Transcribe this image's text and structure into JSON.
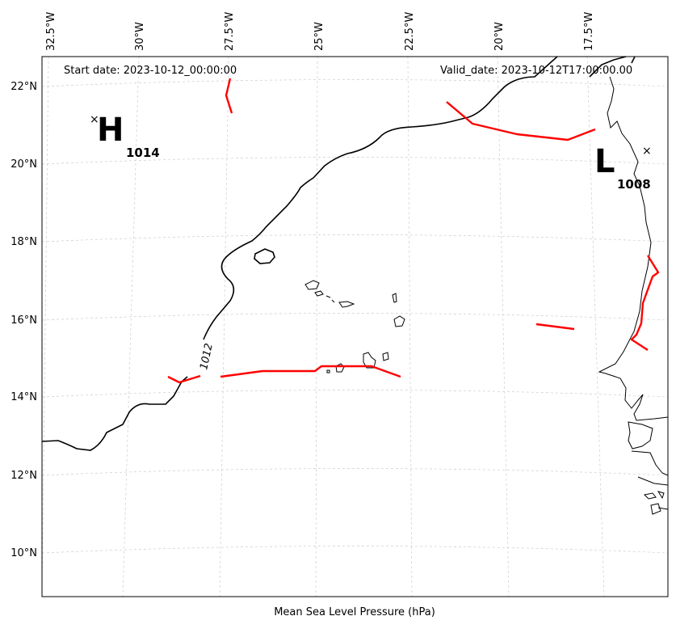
{
  "header": {
    "start_date": "Start date: 2023-10-12_00:00:00",
    "valid_date": "Valid_date: 2023-10-12T17:00:00.00"
  },
  "caption": "Mean Sea Level Pressure (hPa)",
  "longitude_labels": [
    "32.5°W",
    "30°W",
    "27.5°W",
    "25°W",
    "22.5°W",
    "20°W",
    "17.5°W"
  ],
  "latitude_labels": [
    "22°N",
    "20°N",
    "18°N",
    "16°N",
    "14°N",
    "12°N",
    "10°N"
  ],
  "pressure_centers": [
    {
      "type": "H",
      "value": "1014"
    },
    {
      "type": "L",
      "value": "1008"
    }
  ],
  "isobar_label": "1012",
  "colors": {
    "isobar": "#000000",
    "front": "#ff0000",
    "coast": "#000000",
    "grid": "#cccccc"
  }
}
